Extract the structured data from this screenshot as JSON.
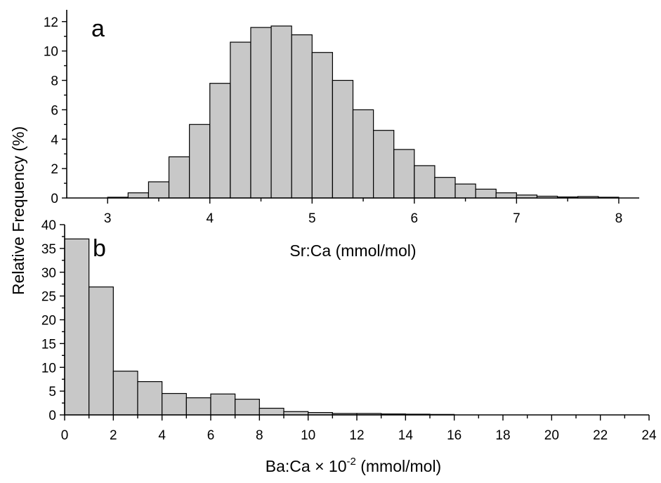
{
  "shared": {
    "ylabel": "Relative Frequency (%)"
  },
  "chart_data": [
    {
      "type": "bar",
      "panel_label": "a",
      "xlabel": "Sr:Ca (mmol/mol)",
      "xlim": [
        2.6,
        8.2
      ],
      "ylim": [
        0,
        12.8
      ],
      "xticks": [
        3,
        4,
        5,
        6,
        7,
        8
      ],
      "yticks": [
        0,
        2,
        4,
        6,
        8,
        10,
        12
      ],
      "bin_width": 0.2,
      "bin_starts": [
        3.0,
        3.2,
        3.4,
        3.6,
        3.8,
        4.0,
        4.2,
        4.4,
        4.6,
        4.8,
        5.0,
        5.2,
        5.4,
        5.6,
        5.8,
        6.0,
        6.2,
        6.4,
        6.6,
        6.8,
        7.0,
        7.2,
        7.4,
        7.6,
        7.8
      ],
      "values": [
        0.05,
        0.35,
        1.1,
        2.8,
        5.0,
        7.8,
        10.6,
        11.6,
        11.7,
        11.1,
        9.9,
        8.0,
        6.0,
        4.6,
        3.3,
        2.2,
        1.4,
        0.95,
        0.6,
        0.35,
        0.2,
        0.12,
        0.07,
        0.1,
        0.05
      ]
    },
    {
      "type": "bar",
      "panel_label": "b",
      "xlabel_main": "Ba:Ca × 10",
      "xlabel_sup": "-2",
      "xlabel_tail": " (mmol/mol)",
      "xlim": [
        0,
        24
      ],
      "ylim": [
        0,
        40
      ],
      "xticks": [
        0,
        2,
        4,
        6,
        8,
        10,
        12,
        14,
        16,
        18,
        20,
        22,
        24
      ],
      "yticks": [
        0,
        5,
        10,
        15,
        20,
        25,
        30,
        35,
        40
      ],
      "bin_width": 1,
      "bin_starts": [
        0,
        1,
        2,
        3,
        4,
        5,
        6,
        7,
        8,
        9,
        10,
        11,
        12,
        13,
        14,
        15
      ],
      "values": [
        37,
        26.9,
        9.2,
        7.0,
        4.5,
        3.6,
        4.4,
        3.3,
        1.4,
        0.7,
        0.5,
        0.3,
        0.3,
        0.2,
        0.15,
        0.1
      ]
    }
  ]
}
